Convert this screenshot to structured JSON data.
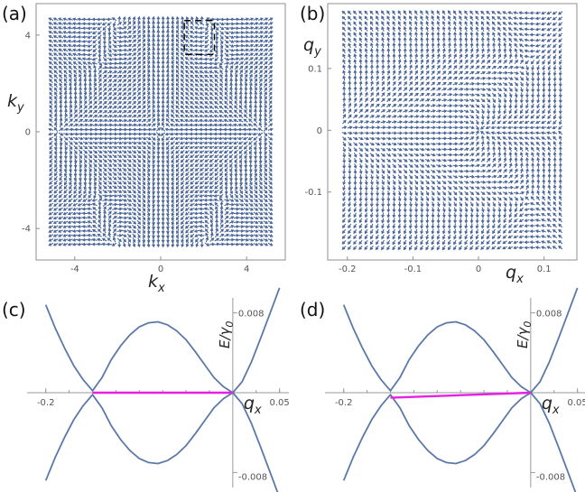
{
  "figure": {
    "panels": [
      {
        "id": "a",
        "label": "(a)"
      },
      {
        "id": "b",
        "label": "(b)"
      },
      {
        "id": "c",
        "label": "(c)"
      },
      {
        "id": "d",
        "label": "(d)"
      }
    ]
  },
  "colors": {
    "arrows": "#4a6596",
    "curves": "#5b79a8",
    "cut": "#e620e6",
    "frame": "#8f8f8f",
    "inset": "#000000"
  },
  "chart_data": [
    {
      "panel": "a",
      "type": "vector_field",
      "xlabel_main": "k",
      "xlabel_sub": "x",
      "ylabel_main": "k",
      "ylabel_sub": "y",
      "xlim": [
        -5.8,
        5.8
      ],
      "ylim": [
        -5.3,
        5.3
      ],
      "xticks": [
        -4,
        0,
        4
      ],
      "xticklabels": [
        "-4",
        "0",
        "4"
      ],
      "yticks": [
        -4,
        0,
        4
      ],
      "yticklabels": [
        "-4",
        "0",
        "4"
      ],
      "grid": false,
      "inset_box": {
        "x": [
          1.1,
          2.5
        ],
        "y": [
          3.2,
          4.6
        ]
      }
    },
    {
      "panel": "b",
      "type": "vector_field",
      "xlabel_main": "q",
      "xlabel_sub": "x",
      "ylabel_main": "q",
      "ylabel_sub": "y",
      "xlim": [
        -0.23,
        0.15
      ],
      "ylim": [
        -0.21,
        0.205
      ],
      "xticks": [
        -0.2,
        -0.1,
        0,
        0.1
      ],
      "xticklabels": [
        "-0.2",
        "-0.1",
        "0",
        "0.1"
      ],
      "yticks": [
        0.1,
        0,
        -0.1
      ],
      "yticklabels": [
        "0.1",
        "0",
        "-0.1"
      ],
      "grid": false
    },
    {
      "panel": "c",
      "type": "line",
      "xlabel_main": "q",
      "xlabel_sub": "x",
      "ylabel": "E/γ",
      "ylabel_sub": "0",
      "xlim": [
        -0.22,
        0.06
      ],
      "ylim": [
        -0.0095,
        0.0095
      ],
      "xticks": [
        -0.2,
        0.05
      ],
      "xticklabels": [
        "-0.2",
        "0.05"
      ],
      "yticks": [
        0.008,
        -0.008
      ],
      "yticklabels": [
        "0.008",
        "-0.008"
      ],
      "series": [
        {
          "x": [
            -0.2,
            -0.19,
            -0.18,
            -0.17,
            -0.16,
            -0.15,
            -0.14,
            -0.13,
            -0.12,
            -0.11,
            -0.1,
            -0.09,
            -0.08,
            -0.07,
            -0.06,
            -0.05,
            -0.04,
            -0.03,
            -0.02,
            -0.01,
            0.0,
            0.01,
            0.02,
            0.03,
            0.04,
            0.05
          ],
          "y": [
            0.0088,
            0.0065,
            0.0045,
            0.0027,
            0.0013,
            0.0002,
            0.0015,
            0.0033,
            0.0047,
            0.0058,
            0.0066,
            0.007,
            0.0071,
            0.0068,
            0.0062,
            0.0053,
            0.0041,
            0.0028,
            0.0015,
            0.0006,
            0.0,
            0.0011,
            0.0031,
            0.0055,
            0.008,
            0.0105
          ]
        },
        {
          "x": [
            -0.2,
            -0.19,
            -0.18,
            -0.17,
            -0.16,
            -0.15,
            -0.14,
            -0.13,
            -0.12,
            -0.11,
            -0.1,
            -0.09,
            -0.08,
            -0.07,
            -0.06,
            -0.05,
            -0.04,
            -0.03,
            -0.02,
            -0.01,
            0.0,
            0.01,
            0.02,
            0.03,
            0.04,
            0.05
          ],
          "y": [
            -0.0088,
            -0.0065,
            -0.0045,
            -0.0027,
            -0.0013,
            -0.0002,
            -0.0015,
            -0.0033,
            -0.0047,
            -0.0058,
            -0.0066,
            -0.007,
            -0.0071,
            -0.0068,
            -0.0062,
            -0.0053,
            -0.0041,
            -0.0028,
            -0.0015,
            -0.0006,
            0.0,
            -0.0011,
            -0.0031,
            -0.0055,
            -0.008,
            -0.0105
          ]
        }
      ],
      "cut": {
        "x": [
          -0.15,
          0.0
        ],
        "y": [
          0.0,
          0.0
        ]
      }
    },
    {
      "panel": "d",
      "type": "line",
      "xlabel_main": "q",
      "xlabel_sub": "x",
      "ylabel": "E/γ",
      "ylabel_sub": "0",
      "xlim": [
        -0.22,
        0.06
      ],
      "ylim": [
        -0.0095,
        0.0095
      ],
      "xticks": [
        -0.2,
        0.05
      ],
      "xticklabels": [
        "-0.2",
        "0.05"
      ],
      "yticks": [
        0.008,
        -0.008
      ],
      "yticklabels": [
        "0.008",
        "-0.008"
      ],
      "series": [
        {
          "x": [
            -0.2,
            -0.19,
            -0.18,
            -0.17,
            -0.16,
            -0.15,
            -0.14,
            -0.13,
            -0.12,
            -0.11,
            -0.1,
            -0.09,
            -0.08,
            -0.07,
            -0.06,
            -0.05,
            -0.04,
            -0.03,
            -0.02,
            -0.01,
            0.0,
            0.01,
            0.02,
            0.03,
            0.04,
            0.05
          ],
          "y": [
            0.0088,
            0.0065,
            0.0045,
            0.0027,
            0.0013,
            0.0002,
            0.0015,
            0.0033,
            0.0047,
            0.0058,
            0.0066,
            0.007,
            0.0071,
            0.0068,
            0.0062,
            0.0053,
            0.0041,
            0.0028,
            0.0015,
            0.0006,
            0.0,
            0.0011,
            0.0031,
            0.0055,
            0.008,
            0.0105
          ]
        },
        {
          "x": [
            -0.2,
            -0.19,
            -0.18,
            -0.17,
            -0.16,
            -0.15,
            -0.14,
            -0.13,
            -0.12,
            -0.11,
            -0.1,
            -0.09,
            -0.08,
            -0.07,
            -0.06,
            -0.05,
            -0.04,
            -0.03,
            -0.02,
            -0.01,
            0.0,
            0.01,
            0.02,
            0.03,
            0.04,
            0.05
          ],
          "y": [
            -0.0088,
            -0.0065,
            -0.0045,
            -0.0027,
            -0.0013,
            -0.0002,
            -0.0015,
            -0.0033,
            -0.0047,
            -0.0058,
            -0.0066,
            -0.007,
            -0.0071,
            -0.0068,
            -0.0062,
            -0.0053,
            -0.0041,
            -0.0028,
            -0.0015,
            -0.0006,
            0.0,
            -0.0011,
            -0.0031,
            -0.0055,
            -0.008,
            -0.0105
          ]
        }
      ],
      "cut": {
        "x": [
          -0.15,
          0.0
        ],
        "y": [
          -0.0005,
          0.0
        ]
      }
    }
  ]
}
